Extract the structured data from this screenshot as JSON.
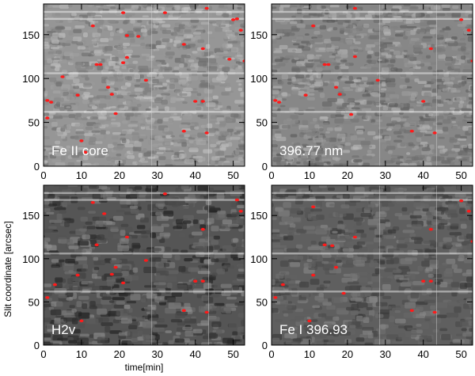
{
  "chart_data": {
    "type": "heatmap",
    "xlabel": "time[min]",
    "ylabel": "Slit coordinate [arcsec]",
    "xlim": [
      0,
      53
    ],
    "ylim": [
      0,
      185
    ],
    "xticks": [
      0,
      10,
      20,
      30,
      40,
      50
    ],
    "yticks": [
      0,
      50,
      100,
      150
    ],
    "grid": false,
    "map_colors": [
      "#000000",
      "#ffffff"
    ],
    "marker_color": "#ff1a1a",
    "panels": [
      {
        "label": "Fe II core",
        "base_gray": 150,
        "contrast": 46,
        "blob_scale": 1.0,
        "markers": [
          [
            1,
            75
          ],
          [
            2,
            73
          ],
          [
            1,
            55
          ],
          [
            5,
            102
          ],
          [
            9,
            81
          ],
          [
            10,
            29
          ],
          [
            11,
            16
          ],
          [
            13,
            160
          ],
          [
            14,
            116
          ],
          [
            15,
            116
          ],
          [
            17,
            90
          ],
          [
            18,
            82
          ],
          [
            19,
            60
          ],
          [
            21,
            175
          ],
          [
            21,
            118
          ],
          [
            22,
            149
          ],
          [
            22,
            124
          ],
          [
            25,
            148
          ],
          [
            27,
            98
          ],
          [
            32,
            175
          ],
          [
            37,
            139
          ],
          [
            37,
            40
          ],
          [
            40,
            74
          ],
          [
            42,
            74
          ],
          [
            42,
            134
          ],
          [
            43,
            38
          ],
          [
            49,
            122
          ],
          [
            50,
            167
          ],
          [
            51,
            168
          ],
          [
            52,
            155
          ],
          [
            53,
            120
          ],
          [
            43,
            180
          ]
        ]
      },
      {
        "label": "396.77 nm",
        "base_gray": 135,
        "contrast": 48,
        "blob_scale": 1.0,
        "markers": [
          [
            1,
            75
          ],
          [
            2,
            73
          ],
          [
            9,
            81
          ],
          [
            11,
            160
          ],
          [
            14,
            116
          ],
          [
            15,
            116
          ],
          [
            17,
            90
          ],
          [
            18,
            82
          ],
          [
            22,
            180
          ],
          [
            22,
            125
          ],
          [
            37,
            40
          ],
          [
            40,
            74
          ],
          [
            42,
            134
          ],
          [
            43,
            38
          ],
          [
            50,
            167
          ],
          [
            52,
            155
          ],
          [
            53,
            120
          ],
          [
            28,
            98
          ],
          [
            21,
            59
          ]
        ]
      },
      {
        "label": "H2v",
        "base_gray": 85,
        "contrast": 60,
        "blob_scale": 1.25,
        "markers": [
          [
            1,
            55
          ],
          [
            3,
            70
          ],
          [
            9,
            81
          ],
          [
            10,
            28
          ],
          [
            13,
            165
          ],
          [
            14,
            116
          ],
          [
            16,
            152
          ],
          [
            18,
            82
          ],
          [
            19,
            90
          ],
          [
            21,
            72
          ],
          [
            22,
            125
          ],
          [
            27,
            98
          ],
          [
            32,
            175
          ],
          [
            37,
            40
          ],
          [
            40,
            74
          ],
          [
            42,
            74
          ],
          [
            42,
            134
          ],
          [
            43,
            38
          ],
          [
            51,
            168
          ],
          [
            52,
            155
          ]
        ]
      },
      {
        "label": "Fe I 396.93",
        "base_gray": 95,
        "contrast": 42,
        "blob_scale": 1.25,
        "markers": [
          [
            1,
            55
          ],
          [
            3,
            70
          ],
          [
            10,
            28
          ],
          [
            11,
            160
          ],
          [
            11,
            81
          ],
          [
            14,
            116
          ],
          [
            16,
            115
          ],
          [
            17,
            90
          ],
          [
            19,
            60
          ],
          [
            22,
            125
          ],
          [
            37,
            40
          ],
          [
            40,
            74
          ],
          [
            42,
            74
          ],
          [
            42,
            134
          ],
          [
            43,
            38
          ],
          [
            50,
            167
          ],
          [
            52,
            155
          ],
          [
            53,
            120
          ]
        ]
      }
    ]
  }
}
